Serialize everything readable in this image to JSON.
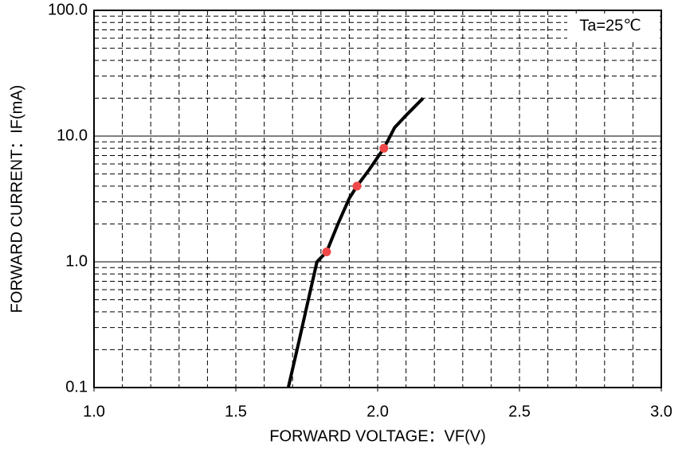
{
  "chart_data": {
    "type": "line",
    "xlabel": "FORWARD VOLTAGE：VF(V)",
    "ylabel": "FORWARD CURRENT：IF(mA)",
    "annotation": "Ta=25℃",
    "xlim": [
      1.0,
      3.0
    ],
    "xticks": [
      {
        "value": 1.0,
        "label": "1.0"
      },
      1.5,
      {
        "value": 2.0,
        "label": "2.0"
      },
      2.5,
      {
        "value": 3.0,
        "label": "3.0"
      }
    ],
    "ylim": [
      0.1,
      100
    ],
    "yticks": [
      0.1,
      {
        "value": 1,
        "label": "1.0"
      },
      {
        "value": 10,
        "label": "10.0"
      },
      {
        "value": 100,
        "label": "100.0"
      }
    ],
    "yscale": "log",
    "grid": true,
    "minor_grid": true,
    "series": [
      {
        "color": "#000000",
        "line": true,
        "x": [
          1.685,
          1.72,
          1.75,
          1.786,
          1.82,
          1.86,
          1.9,
          1.927,
          1.97,
          2.022,
          2.06,
          2.1,
          2.16
        ],
        "values": [
          0.1,
          0.22,
          0.44,
          1.0,
          1.2,
          2.0,
          3.2,
          4.0,
          5.4,
          8.0,
          11.7,
          14.6,
          20
        ]
      },
      {
        "color": "#f04848",
        "line": false,
        "marker": "circle",
        "x": [
          1.82,
          1.927,
          2.022
        ],
        "values": [
          1.2,
          4.0,
          8.0
        ]
      }
    ]
  }
}
